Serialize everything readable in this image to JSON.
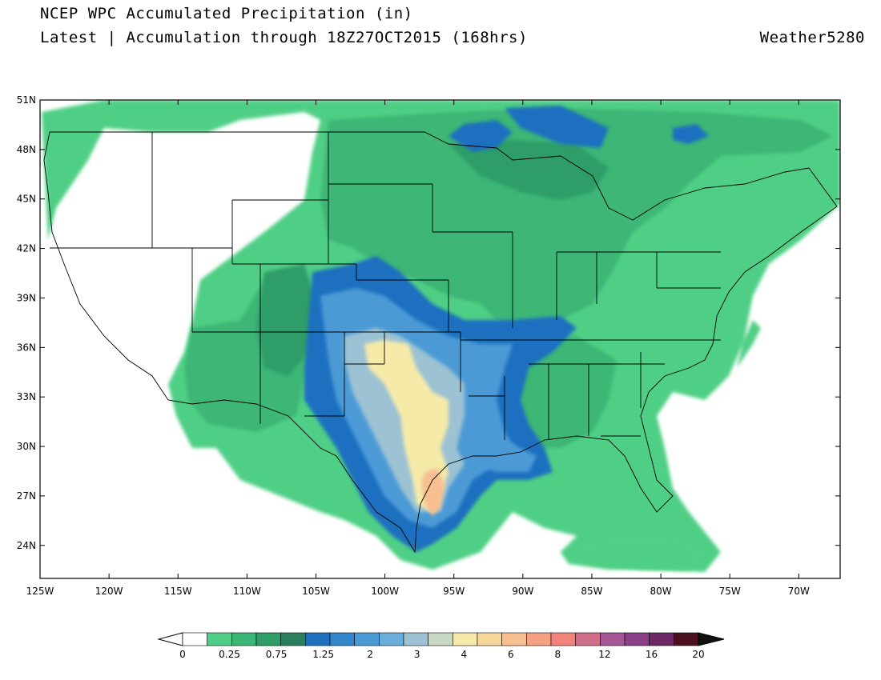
{
  "header": {
    "title": "NCEP WPC Accumulated Precipitation (in)",
    "subtitle": "Latest | Accumulation through 18Z27OCT2015 (168hrs)",
    "brand": "Weather5280"
  },
  "map": {
    "projection": "lat-lon",
    "lon_range": [
      -125,
      -67
    ],
    "lat_range": [
      22,
      51
    ],
    "lat_ticks": [
      "51N",
      "48N",
      "45N",
      "42N",
      "39N",
      "36N",
      "33N",
      "30N",
      "27N",
      "24N"
    ],
    "lat_tick_values": [
      51,
      48,
      45,
      42,
      39,
      36,
      33,
      30,
      27,
      24
    ],
    "lon_ticks": [
      "125W",
      "120W",
      "115W",
      "110W",
      "105W",
      "100W",
      "95W",
      "90W",
      "85W",
      "80W",
      "75W",
      "70W"
    ],
    "lon_tick_values": [
      -125,
      -120,
      -115,
      -110,
      -105,
      -100,
      -95,
      -90,
      -85,
      -80,
      -75,
      -70
    ]
  },
  "colorbar": {
    "colors": [
      "#ffffff",
      "#4fcf85",
      "#3cb676",
      "#2f9d68",
      "#2a7f5e",
      "#1f6fbf",
      "#3486cc",
      "#4b9ad6",
      "#6aaedc",
      "#9cc2d3",
      "#c7d9c3",
      "#f5eaa8",
      "#f8d79a",
      "#f8bf91",
      "#f5a184",
      "#f2827a",
      "#cf6f87",
      "#a65694",
      "#8a4089",
      "#6b2865",
      "#4a1020"
    ],
    "labels": [
      "0",
      "0.25",
      "0.75",
      "1.25",
      "2",
      "3",
      "4",
      "6",
      "8",
      "12",
      "16",
      "20"
    ],
    "label_positions": [
      0,
      2,
      4,
      6,
      8,
      10,
      12,
      14,
      16,
      18,
      20,
      22
    ]
  },
  "precip_zones": [
    {
      "level": "0.25",
      "color": "#4fcf85"
    },
    {
      "level": "0.75",
      "color": "#3cb676"
    },
    {
      "level": "1.25",
      "color": "#1f6fbf"
    },
    {
      "level": "2",
      "color": "#4b9ad6"
    },
    {
      "level": "3",
      "color": "#9cc2d3"
    },
    {
      "level": "4",
      "color": "#f5eaa8"
    },
    {
      "level": "6",
      "color": "#f8bf91"
    }
  ]
}
